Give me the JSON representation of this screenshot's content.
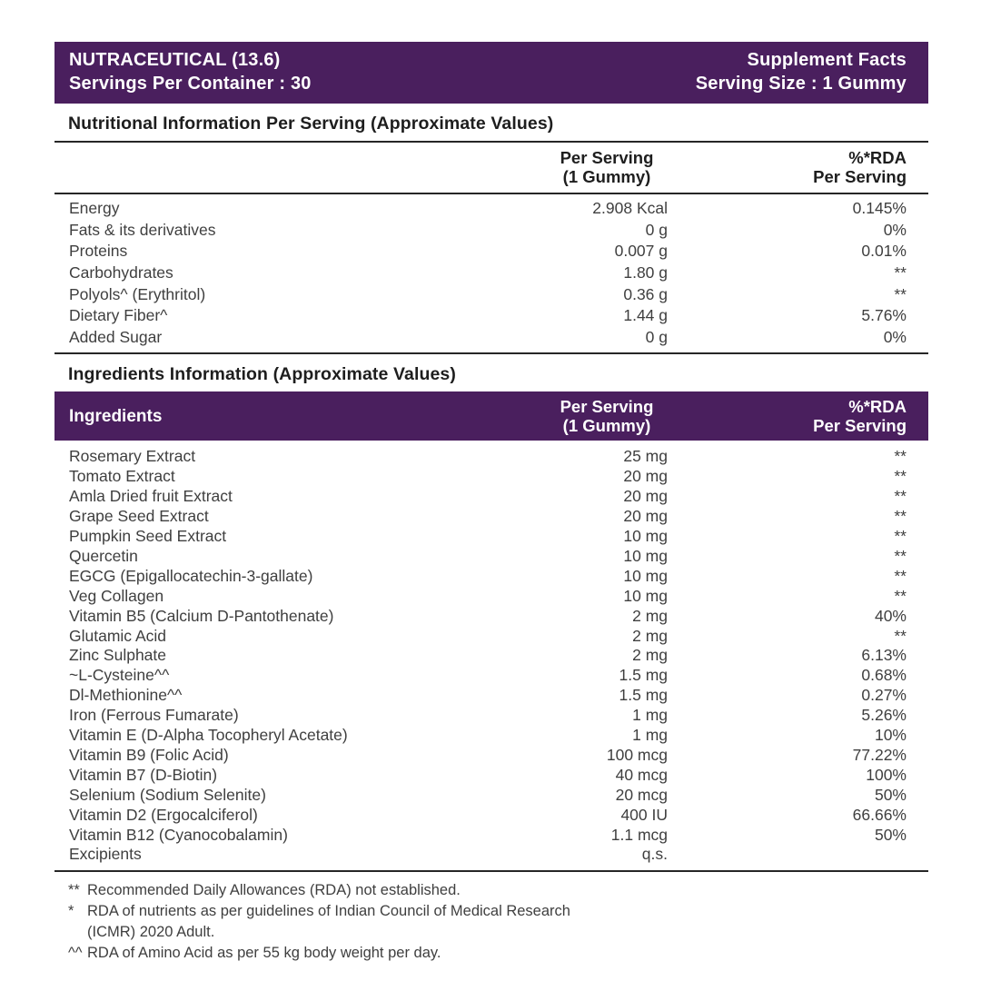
{
  "colors": {
    "purple": "#4a1f5e",
    "ink": "#1e1e1e",
    "body": "#3f3f3f",
    "rule": "#262626"
  },
  "header": {
    "product_name": "NUTRACEUTICAL (13.6)",
    "servings_per_container": "Servings Per Container : 30",
    "title": "Supplement Facts",
    "serving_size": "Serving Size : 1 Gummy"
  },
  "nutrition": {
    "heading": "Nutritional Information Per Serving (Approximate Values)",
    "col_serving_line1": "Per Serving",
    "col_serving_line2": "(1 Gummy)",
    "col_rda_line1": "%*RDA",
    "col_rda_line2": "Per Serving",
    "rows": [
      {
        "name": "Energy",
        "amount": "2.908 Kcal",
        "rda": "0.145%"
      },
      {
        "name": "Fats & its derivatives",
        "amount": "0 g",
        "rda": "0%"
      },
      {
        "name": "Proteins",
        "amount": "0.007 g",
        "rda": "0.01%"
      },
      {
        "name": "Carbohydrates",
        "amount": "1.80 g",
        "rda": "**"
      },
      {
        "name": "Polyols^ (Erythritol)",
        "amount": "0.36 g",
        "rda": "**"
      },
      {
        "name": "Dietary Fiber^",
        "amount": "1.44 g",
        "rda": "5.76%"
      },
      {
        "name": "Added Sugar",
        "amount": "0 g",
        "rda": "0%"
      }
    ]
  },
  "ingredients": {
    "heading": "Ingredients Information (Approximate Values)",
    "col_name": "Ingredients",
    "col_serving_line1": "Per Serving",
    "col_serving_line2": "(1 Gummy)",
    "col_rda_line1": "%*RDA",
    "col_rda_line2": "Per Serving",
    "rows": [
      {
        "name": "Rosemary Extract",
        "amount": "25 mg",
        "rda": "**"
      },
      {
        "name": "Tomato Extract",
        "amount": "20 mg",
        "rda": "**"
      },
      {
        "name": "Amla Dried fruit Extract",
        "amount": "20 mg",
        "rda": "**"
      },
      {
        "name": "Grape Seed Extract",
        "amount": "20 mg",
        "rda": "**"
      },
      {
        "name": "Pumpkin Seed Extract",
        "amount": "10 mg",
        "rda": "**"
      },
      {
        "name": "Quercetin",
        "amount": "10 mg",
        "rda": "**"
      },
      {
        "name": "EGCG (Epigallocatechin-3-gallate)",
        "amount": "10 mg",
        "rda": "**"
      },
      {
        "name": "Veg Collagen",
        "amount": "10 mg",
        "rda": "**"
      },
      {
        "name": "Vitamin B5 (Calcium D-Pantothenate)",
        "amount": "2 mg",
        "rda": "40%"
      },
      {
        "name": "Glutamic Acid",
        "amount": "2 mg",
        "rda": "**"
      },
      {
        "name": "Zinc Sulphate",
        "amount": "2 mg",
        "rda": "6.13%"
      },
      {
        "name": "~L-Cysteine^^",
        "amount": "1.5 mg",
        "rda": "0.68%"
      },
      {
        "name": "Dl-Methionine^^",
        "amount": "1.5 mg",
        "rda": "0.27%"
      },
      {
        "name": "Iron (Ferrous Fumarate)",
        "amount": "1 mg",
        "rda": "5.26%"
      },
      {
        "name": "Vitamin E (D-Alpha Tocopheryl Acetate)",
        "amount": "1 mg",
        "rda": "10%"
      },
      {
        "name": "Vitamin B9 (Folic Acid)",
        "amount": "100 mcg",
        "rda": "77.22%"
      },
      {
        "name": "Vitamin B7 (D-Biotin)",
        "amount": "40 mcg",
        "rda": "100%"
      },
      {
        "name": "Selenium (Sodium Selenite)",
        "amount": "20 mcg",
        "rda": "50%"
      },
      {
        "name": "Vitamin D2 (Ergocalciferol)",
        "amount": "400 IU",
        "rda": "66.66%"
      },
      {
        "name": "Vitamin B12 (Cyanocobalamin)",
        "amount": "1.1 mcg",
        "rda": "50%"
      },
      {
        "name": "Excipients",
        "amount": "q.s.",
        "rda": ""
      }
    ]
  },
  "footnotes": [
    {
      "marker": "**",
      "text": "Recommended Daily Allowances (RDA) not established."
    },
    {
      "marker": "*",
      "text": "RDA of nutrients as per guidelines of Indian Council of Medical Research\n(ICMR) 2020 Adult."
    },
    {
      "marker": "^^",
      "text": "RDA of Amino Acid as per 55 kg body weight per day."
    }
  ]
}
